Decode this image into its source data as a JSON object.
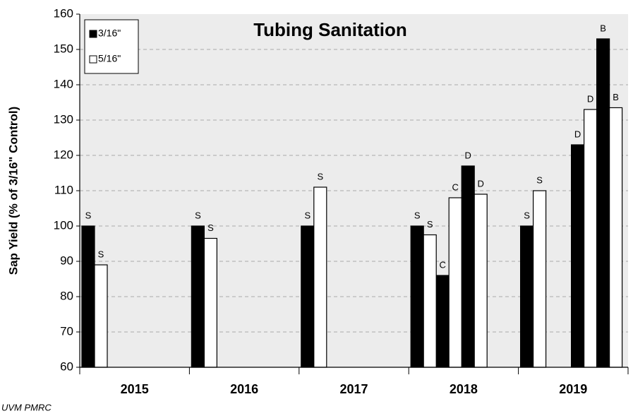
{
  "chart_data": {
    "type": "bar",
    "title": "Tubing Sanitation",
    "ylabel": "Sap Yield (% of 3/16\" Control)",
    "source": "UVM PMRC",
    "categories": [
      "2015",
      "2016",
      "2017",
      "2018",
      "2019"
    ],
    "series": [
      {
        "name": "3/16\"",
        "color": "#000000",
        "values": [
          [
            100
          ],
          [
            100
          ],
          [
            100
          ],
          [
            100,
            86,
            117
          ],
          [
            100,
            null,
            123,
            153
          ]
        ],
        "letters": [
          [
            "S"
          ],
          [
            "S"
          ],
          [
            "S"
          ],
          [
            "S",
            "C",
            "D"
          ],
          [
            "S",
            null,
            "D",
            "B"
          ]
        ]
      },
      {
        "name": "5/16\"",
        "color": "#ffffff",
        "values": [
          [
            89
          ],
          [
            96.5
          ],
          [
            111
          ],
          [
            97.5,
            108,
            109
          ],
          [
            110,
            null,
            133,
            133.5
          ]
        ],
        "letters": [
          [
            "S"
          ],
          [
            "S"
          ],
          [
            "S"
          ],
          [
            "S",
            "C",
            "D"
          ],
          [
            "S",
            null,
            "D",
            "B"
          ]
        ]
      }
    ],
    "ylim": [
      60,
      160
    ],
    "yticks": [
      60,
      70,
      80,
      90,
      100,
      110,
      120,
      130,
      140,
      150,
      160
    ],
    "grid": true,
    "legend": "upper left"
  }
}
